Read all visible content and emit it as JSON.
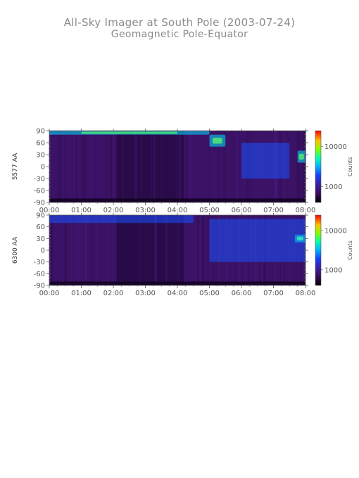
{
  "title": "All-Sky Imager at South Pole (2003-07-24)",
  "subtitle": "Geomagnetic Pole-Equator",
  "colors": {
    "axis": "#555555",
    "text": "#8a8a8a"
  },
  "chart_data": [
    {
      "type": "heatmap",
      "ylabel": "5577 AA",
      "colorbar_label": "Counts",
      "colorbar_scale": "log",
      "colorbar_ticks": [
        "10000",
        "1000"
      ],
      "colorbar_tick_values": [
        10000,
        1000
      ],
      "colorbar_range": [
        400,
        25000
      ],
      "x_ticks": [
        "00:00",
        "01:00",
        "02:00",
        "03:00",
        "04:00",
        "05:00",
        "06:00",
        "07:00",
        "08:00"
      ],
      "y_ticks": [
        "90",
        "60",
        "30",
        "0",
        "-30",
        "-60",
        "-90"
      ],
      "y_tick_values": [
        90,
        60,
        30,
        0,
        -30,
        -60,
        -90
      ],
      "xlim": [
        "00:00",
        "08:00"
      ],
      "ylim": [
        -90,
        90
      ],
      "features": [
        {
          "time": "00:00-05:00",
          "lat": "80 to 90",
          "level": "bright band"
        },
        {
          "time": "05:00-05:30",
          "lat": "50 to 80",
          "level": "bright arc"
        },
        {
          "time": "06:00-07:30",
          "lat": "-30 to 60",
          "level": "moderate"
        },
        {
          "time": "07:45-08:00",
          "lat": "10 to 40",
          "level": "bright"
        }
      ]
    },
    {
      "type": "heatmap",
      "ylabel": "6300 AA",
      "colorbar_label": "Counts",
      "colorbar_scale": "log",
      "colorbar_ticks": [
        "10000",
        "1000"
      ],
      "colorbar_tick_values": [
        10000,
        1000
      ],
      "colorbar_range": [
        400,
        25000
      ],
      "x_ticks": [
        "00:00",
        "01:00",
        "02:00",
        "03:00",
        "04:00",
        "05:00",
        "06:00",
        "07:00",
        "08:00"
      ],
      "y_ticks": [
        "90",
        "60",
        "30",
        "0",
        "-30",
        "-60",
        "-90"
      ],
      "y_tick_values": [
        90,
        60,
        30,
        0,
        -30,
        -60,
        -90
      ],
      "xlim": [
        "00:00",
        "08:00"
      ],
      "ylim": [
        -90,
        90
      ],
      "features": [
        {
          "time": "00:00-04:30",
          "lat": "70 to 90",
          "level": "moderate band"
        },
        {
          "time": "05:00-08:00",
          "lat": "-30 to 80",
          "level": "moderate arcs"
        },
        {
          "time": "07:40-08:00",
          "lat": "20 to 40",
          "level": "bright"
        }
      ]
    }
  ]
}
